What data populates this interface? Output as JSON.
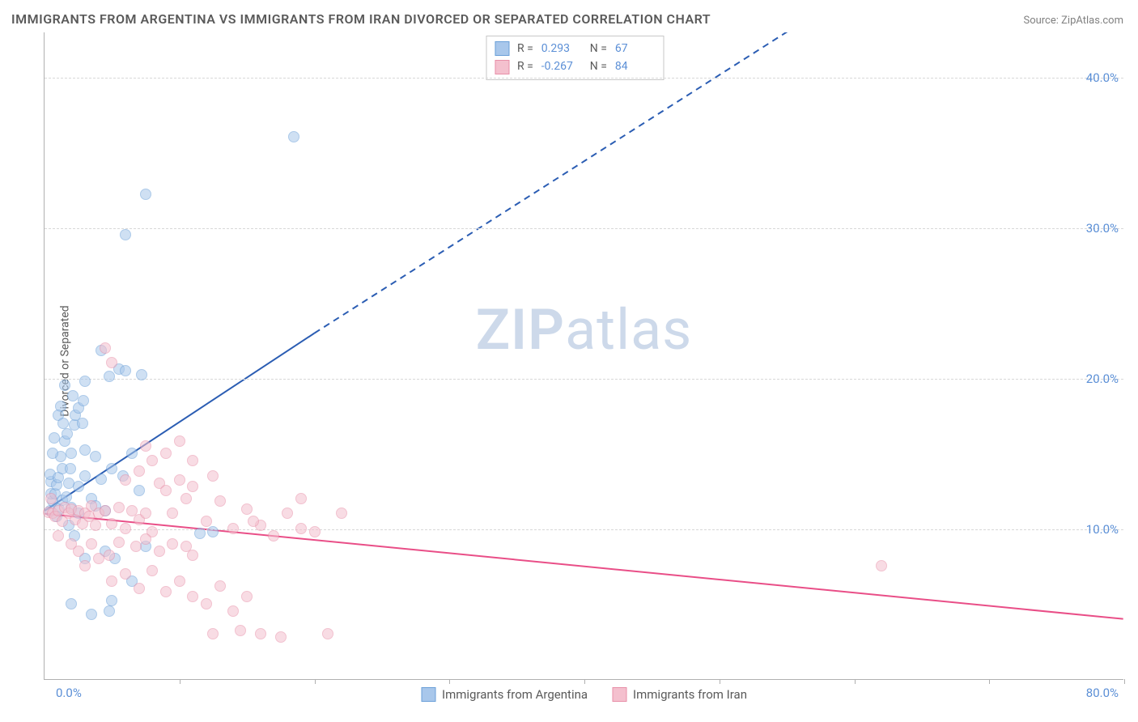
{
  "title": "IMMIGRANTS FROM ARGENTINA VS IMMIGRANTS FROM IRAN DIVORCED OR SEPARATED CORRELATION CHART",
  "source": "Source: ZipAtlas.com",
  "y_axis_label": "Divorced or Separated",
  "watermark_a": "ZIP",
  "watermark_b": "atlas",
  "chart": {
    "type": "scatter",
    "xlim": [
      0,
      80
    ],
    "ylim": [
      0,
      43
    ],
    "x_ticks": [
      10,
      20,
      30,
      40,
      50,
      60,
      70,
      80
    ],
    "x_tick_labels": {
      "left": "0.0%",
      "right": "80.0%"
    },
    "y_grid": [
      10,
      20,
      30,
      40
    ],
    "y_tick_labels": [
      "10.0%",
      "20.0%",
      "30.0%",
      "40.0%"
    ],
    "background_color": "#ffffff",
    "grid_color": "#d8d8d8",
    "axis_color": "#b0b0b0",
    "point_radius": 7,
    "point_opacity": 0.55,
    "series": [
      {
        "name": "Immigrants from Argentina",
        "color_fill": "#a8c7eb",
        "color_stroke": "#6a9fd8",
        "R": "0.293",
        "N": "67",
        "trend": {
          "color": "#2b5db3",
          "width": 2,
          "solid_from": [
            0,
            11.2
          ],
          "solid_to": [
            20,
            23
          ],
          "dash_to": [
            62,
            47
          ]
        },
        "points": [
          [
            0.4,
            11.2
          ],
          [
            0.6,
            11.8
          ],
          [
            0.5,
            12.3
          ],
          [
            0.8,
            12.3
          ],
          [
            0.5,
            13.1
          ],
          [
            0.9,
            12.9
          ],
          [
            0.4,
            13.6
          ],
          [
            1.1,
            11.3
          ],
          [
            1.3,
            11.9
          ],
          [
            1.0,
            13.4
          ],
          [
            1.6,
            12.1
          ],
          [
            1.3,
            14.0
          ],
          [
            1.8,
            13.0
          ],
          [
            1.2,
            14.8
          ],
          [
            1.5,
            15.8
          ],
          [
            1.7,
            16.3
          ],
          [
            2.0,
            15.0
          ],
          [
            2.2,
            16.9
          ],
          [
            2.3,
            17.5
          ],
          [
            2.5,
            18.0
          ],
          [
            2.1,
            18.8
          ],
          [
            1.9,
            14.0
          ],
          [
            2.8,
            17.0
          ],
          [
            3.0,
            15.2
          ],
          [
            2.9,
            18.5
          ],
          [
            1.5,
            19.5
          ],
          [
            1.2,
            18.1
          ],
          [
            1.0,
            17.5
          ],
          [
            1.4,
            17.0
          ],
          [
            0.7,
            16.0
          ],
          [
            0.6,
            15.0
          ],
          [
            2.0,
            11.4
          ],
          [
            2.5,
            12.8
          ],
          [
            3.0,
            13.5
          ],
          [
            3.5,
            12.0
          ],
          [
            4.2,
            13.3
          ],
          [
            4.5,
            11.2
          ],
          [
            5.0,
            14.0
          ],
          [
            5.8,
            13.5
          ],
          [
            6.5,
            15.0
          ],
          [
            7.0,
            12.5
          ],
          [
            3.0,
            19.8
          ],
          [
            4.8,
            20.1
          ],
          [
            5.5,
            20.6
          ],
          [
            6.0,
            20.5
          ],
          [
            7.2,
            20.2
          ],
          [
            4.2,
            21.8
          ],
          [
            3.8,
            14.8
          ],
          [
            3.0,
            8.0
          ],
          [
            4.5,
            8.5
          ],
          [
            5.2,
            8.0
          ],
          [
            3.5,
            4.3
          ],
          [
            4.8,
            4.5
          ],
          [
            2.0,
            5.0
          ],
          [
            5.0,
            5.2
          ],
          [
            6.5,
            6.5
          ],
          [
            7.5,
            8.8
          ],
          [
            11.5,
            9.7
          ],
          [
            12.5,
            9.8
          ],
          [
            6.0,
            29.5
          ],
          [
            7.5,
            32.2
          ],
          [
            18.5,
            36.0
          ],
          [
            2.5,
            11.0
          ],
          [
            3.8,
            11.5
          ],
          [
            1.8,
            10.2
          ],
          [
            2.2,
            9.5
          ],
          [
            0.9,
            10.8
          ]
        ]
      },
      {
        "name": "Immigrants from Iran",
        "color_fill": "#f4c0ce",
        "color_stroke": "#e88fa8",
        "R": "-0.267",
        "N": "84",
        "trend": {
          "color": "#e94e87",
          "width": 2,
          "solid_from": [
            0,
            11.0
          ],
          "solid_to": [
            80,
            4.0
          ]
        },
        "points": [
          [
            0.3,
            11.1
          ],
          [
            0.6,
            11.0
          ],
          [
            0.8,
            10.8
          ],
          [
            1.0,
            11.2
          ],
          [
            1.3,
            10.5
          ],
          [
            1.5,
            11.4
          ],
          [
            1.8,
            11.0
          ],
          [
            2.0,
            11.3
          ],
          [
            2.3,
            10.6
          ],
          [
            2.5,
            11.2
          ],
          [
            2.8,
            10.3
          ],
          [
            3.0,
            11.0
          ],
          [
            3.3,
            10.8
          ],
          [
            3.5,
            11.5
          ],
          [
            3.8,
            10.2
          ],
          [
            4.0,
            11.0
          ],
          [
            4.5,
            11.2
          ],
          [
            5.0,
            10.3
          ],
          [
            5.5,
            11.4
          ],
          [
            6.0,
            10.0
          ],
          [
            6.5,
            11.2
          ],
          [
            7.0,
            10.6
          ],
          [
            7.5,
            11.0
          ],
          [
            8.0,
            9.8
          ],
          [
            8.5,
            13.0
          ],
          [
            9.0,
            12.5
          ],
          [
            9.5,
            11.0
          ],
          [
            10.0,
            13.2
          ],
          [
            10.5,
            12.0
          ],
          [
            11.0,
            12.8
          ],
          [
            12.0,
            10.5
          ],
          [
            13.0,
            11.8
          ],
          [
            14.0,
            10.0
          ],
          [
            15.0,
            11.3
          ],
          [
            16.0,
            10.2
          ],
          [
            17.0,
            9.5
          ],
          [
            18.0,
            11.0
          ],
          [
            19.0,
            12.0
          ],
          [
            20.0,
            9.8
          ],
          [
            22.0,
            11.0
          ],
          [
            2.5,
            8.5
          ],
          [
            3.5,
            9.0
          ],
          [
            4.8,
            8.2
          ],
          [
            5.5,
            9.1
          ],
          [
            6.8,
            8.8
          ],
          [
            7.5,
            9.3
          ],
          [
            8.5,
            8.5
          ],
          [
            9.5,
            9.0
          ],
          [
            10.5,
            8.8
          ],
          [
            11.0,
            8.2
          ],
          [
            12.5,
            13.5
          ],
          [
            6.0,
            13.2
          ],
          [
            7.0,
            13.8
          ],
          [
            8.0,
            14.5
          ],
          [
            9.0,
            15.0
          ],
          [
            10.0,
            15.8
          ],
          [
            11.0,
            14.5
          ],
          [
            4.5,
            22.0
          ],
          [
            5.0,
            21.0
          ],
          [
            7.5,
            15.5
          ],
          [
            1.0,
            9.5
          ],
          [
            2.0,
            9.0
          ],
          [
            3.0,
            7.5
          ],
          [
            4.0,
            8.0
          ],
          [
            5.0,
            6.5
          ],
          [
            6.0,
            7.0
          ],
          [
            7.0,
            6.0
          ],
          [
            8.0,
            7.2
          ],
          [
            9.0,
            5.8
          ],
          [
            10.0,
            6.5
          ],
          [
            11.0,
            5.5
          ],
          [
            12.0,
            5.0
          ],
          [
            13.0,
            6.2
          ],
          [
            14.0,
            4.5
          ],
          [
            15.0,
            5.5
          ],
          [
            12.5,
            3.0
          ],
          [
            14.5,
            3.2
          ],
          [
            16.0,
            3.0
          ],
          [
            17.5,
            2.8
          ],
          [
            19.0,
            10.0
          ],
          [
            21.0,
            3.0
          ],
          [
            15.5,
            10.5
          ],
          [
            62.0,
            7.5
          ],
          [
            0.5,
            12.0
          ]
        ]
      }
    ]
  },
  "bottom_legend": [
    {
      "label": "Immigrants from Argentina",
      "fill": "#a8c7eb",
      "stroke": "#6a9fd8"
    },
    {
      "label": "Immigrants from Iran",
      "fill": "#f4c0ce",
      "stroke": "#e88fa8"
    }
  ]
}
